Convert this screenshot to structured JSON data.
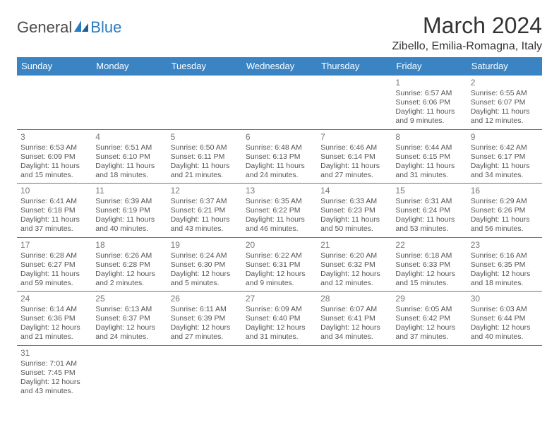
{
  "logo": {
    "text_a": "General",
    "text_b": "Blue"
  },
  "title": "March 2024",
  "location": "Zibello, Emilia-Romagna, Italy",
  "colors": {
    "header_bg": "#3a84c4",
    "header_text": "#ffffff",
    "border": "#3a84c4",
    "body_text": "#555555",
    "daynum": "#777777",
    "title_text": "#333333"
  },
  "day_headers": [
    "Sunday",
    "Monday",
    "Tuesday",
    "Wednesday",
    "Thursday",
    "Friday",
    "Saturday"
  ],
  "weeks": [
    [
      null,
      null,
      null,
      null,
      null,
      {
        "n": "1",
        "sr": "6:57 AM",
        "ss": "6:06 PM",
        "dl": "11 hours and 9 minutes."
      },
      {
        "n": "2",
        "sr": "6:55 AM",
        "ss": "6:07 PM",
        "dl": "11 hours and 12 minutes."
      }
    ],
    [
      {
        "n": "3",
        "sr": "6:53 AM",
        "ss": "6:09 PM",
        "dl": "11 hours and 15 minutes."
      },
      {
        "n": "4",
        "sr": "6:51 AM",
        "ss": "6:10 PM",
        "dl": "11 hours and 18 minutes."
      },
      {
        "n": "5",
        "sr": "6:50 AM",
        "ss": "6:11 PM",
        "dl": "11 hours and 21 minutes."
      },
      {
        "n": "6",
        "sr": "6:48 AM",
        "ss": "6:13 PM",
        "dl": "11 hours and 24 minutes."
      },
      {
        "n": "7",
        "sr": "6:46 AM",
        "ss": "6:14 PM",
        "dl": "11 hours and 27 minutes."
      },
      {
        "n": "8",
        "sr": "6:44 AM",
        "ss": "6:15 PM",
        "dl": "11 hours and 31 minutes."
      },
      {
        "n": "9",
        "sr": "6:42 AM",
        "ss": "6:17 PM",
        "dl": "11 hours and 34 minutes."
      }
    ],
    [
      {
        "n": "10",
        "sr": "6:41 AM",
        "ss": "6:18 PM",
        "dl": "11 hours and 37 minutes."
      },
      {
        "n": "11",
        "sr": "6:39 AM",
        "ss": "6:19 PM",
        "dl": "11 hours and 40 minutes."
      },
      {
        "n": "12",
        "sr": "6:37 AM",
        "ss": "6:21 PM",
        "dl": "11 hours and 43 minutes."
      },
      {
        "n": "13",
        "sr": "6:35 AM",
        "ss": "6:22 PM",
        "dl": "11 hours and 46 minutes."
      },
      {
        "n": "14",
        "sr": "6:33 AM",
        "ss": "6:23 PM",
        "dl": "11 hours and 50 minutes."
      },
      {
        "n": "15",
        "sr": "6:31 AM",
        "ss": "6:24 PM",
        "dl": "11 hours and 53 minutes."
      },
      {
        "n": "16",
        "sr": "6:29 AM",
        "ss": "6:26 PM",
        "dl": "11 hours and 56 minutes."
      }
    ],
    [
      {
        "n": "17",
        "sr": "6:28 AM",
        "ss": "6:27 PM",
        "dl": "11 hours and 59 minutes."
      },
      {
        "n": "18",
        "sr": "6:26 AM",
        "ss": "6:28 PM",
        "dl": "12 hours and 2 minutes."
      },
      {
        "n": "19",
        "sr": "6:24 AM",
        "ss": "6:30 PM",
        "dl": "12 hours and 5 minutes."
      },
      {
        "n": "20",
        "sr": "6:22 AM",
        "ss": "6:31 PM",
        "dl": "12 hours and 9 minutes."
      },
      {
        "n": "21",
        "sr": "6:20 AM",
        "ss": "6:32 PM",
        "dl": "12 hours and 12 minutes."
      },
      {
        "n": "22",
        "sr": "6:18 AM",
        "ss": "6:33 PM",
        "dl": "12 hours and 15 minutes."
      },
      {
        "n": "23",
        "sr": "6:16 AM",
        "ss": "6:35 PM",
        "dl": "12 hours and 18 minutes."
      }
    ],
    [
      {
        "n": "24",
        "sr": "6:14 AM",
        "ss": "6:36 PM",
        "dl": "12 hours and 21 minutes."
      },
      {
        "n": "25",
        "sr": "6:13 AM",
        "ss": "6:37 PM",
        "dl": "12 hours and 24 minutes."
      },
      {
        "n": "26",
        "sr": "6:11 AM",
        "ss": "6:39 PM",
        "dl": "12 hours and 27 minutes."
      },
      {
        "n": "27",
        "sr": "6:09 AM",
        "ss": "6:40 PM",
        "dl": "12 hours and 31 minutes."
      },
      {
        "n": "28",
        "sr": "6:07 AM",
        "ss": "6:41 PM",
        "dl": "12 hours and 34 minutes."
      },
      {
        "n": "29",
        "sr": "6:05 AM",
        "ss": "6:42 PM",
        "dl": "12 hours and 37 minutes."
      },
      {
        "n": "30",
        "sr": "6:03 AM",
        "ss": "6:44 PM",
        "dl": "12 hours and 40 minutes."
      }
    ],
    [
      {
        "n": "31",
        "sr": "7:01 AM",
        "ss": "7:45 PM",
        "dl": "12 hours and 43 minutes."
      },
      null,
      null,
      null,
      null,
      null,
      null
    ]
  ],
  "labels": {
    "sunrise": "Sunrise: ",
    "sunset": "Sunset: ",
    "daylight": "Daylight: "
  }
}
